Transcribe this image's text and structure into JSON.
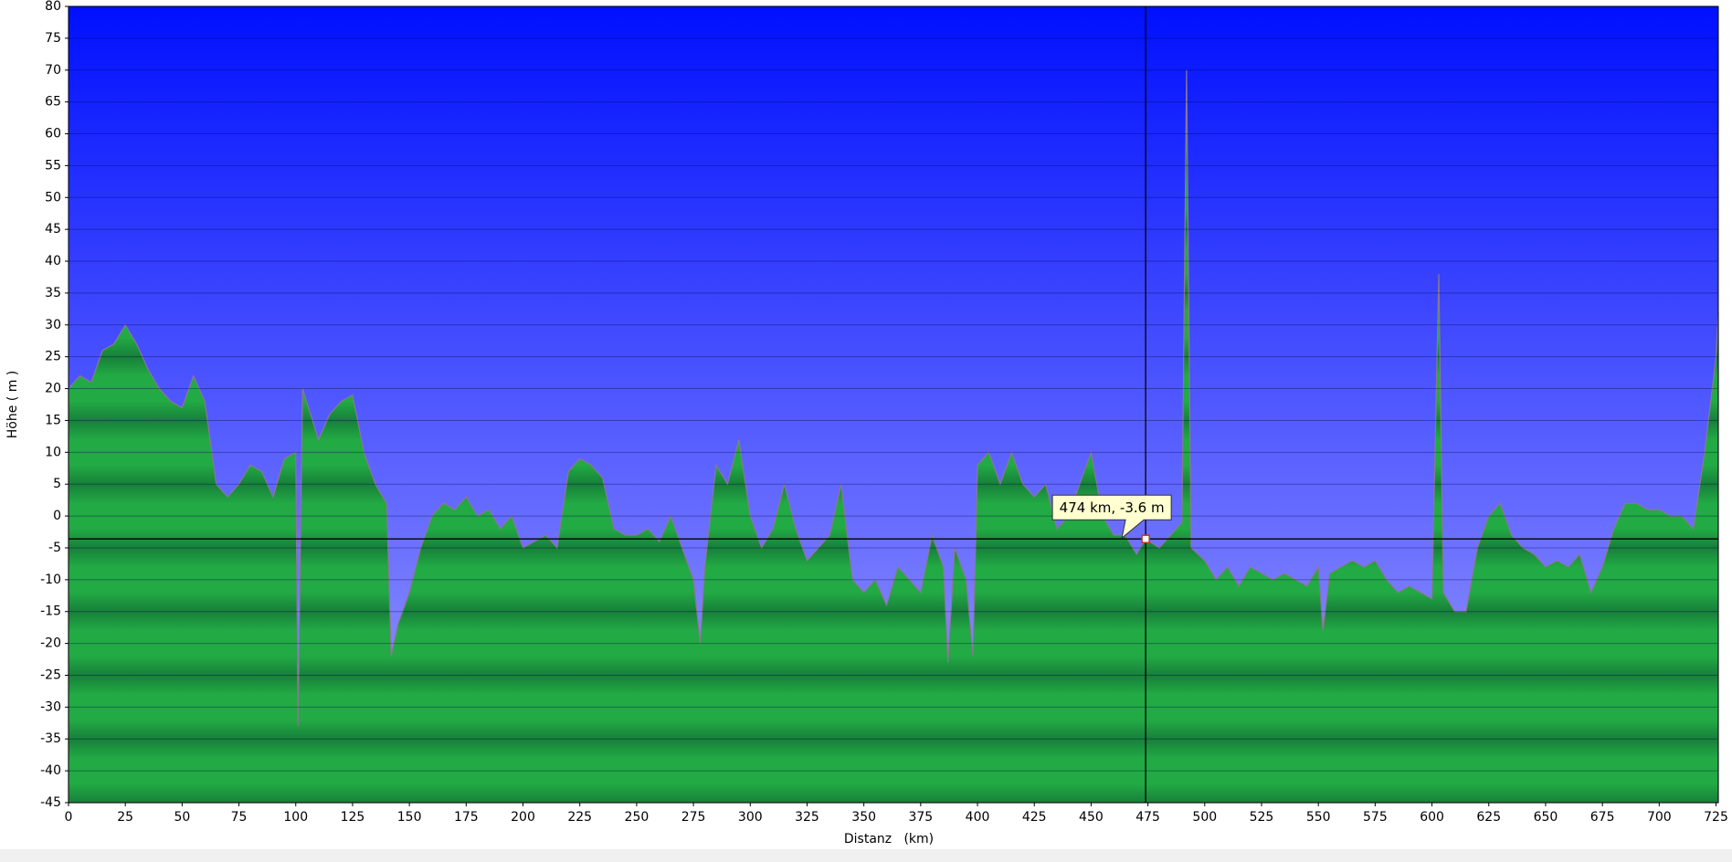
{
  "chart_data": {
    "type": "area",
    "x_label": "Distanz   (km)",
    "y_label": "Höhe ( m )",
    "color": "#22aa44",
    "grid": true,
    "xlim": [
      0,
      726
    ],
    "ylim": [
      -45,
      80
    ],
    "xticks": [
      0,
      25,
      50,
      75,
      100,
      125,
      150,
      175,
      200,
      225,
      250,
      275,
      300,
      325,
      350,
      375,
      400,
      425,
      450,
      475,
      500,
      525,
      550,
      575,
      600,
      625,
      650,
      675,
      700,
      725
    ],
    "yticks": [
      -45,
      -40,
      -35,
      -30,
      -25,
      -20,
      -15,
      -10,
      -5,
      0,
      5,
      10,
      15,
      20,
      25,
      30,
      35,
      40,
      45,
      50,
      55,
      60,
      65,
      70,
      75,
      80
    ],
    "x": [
      0,
      5,
      10,
      15,
      20,
      25,
      30,
      35,
      40,
      45,
      50,
      55,
      60,
      65,
      70,
      75,
      80,
      85,
      90,
      95,
      100,
      101,
      103,
      110,
      115,
      120,
      125,
      130,
      135,
      140,
      142,
      145,
      150,
      155,
      160,
      165,
      170,
      175,
      180,
      185,
      190,
      195,
      200,
      205,
      210,
      215,
      220,
      225,
      230,
      235,
      240,
      245,
      250,
      255,
      260,
      265,
      270,
      275,
      278,
      280,
      285,
      290,
      295,
      300,
      305,
      310,
      315,
      320,
      325,
      330,
      335,
      340,
      345,
      350,
      355,
      360,
      365,
      370,
      375,
      380,
      385,
      387,
      390,
      395,
      398,
      400,
      405,
      410,
      415,
      420,
      425,
      430,
      435,
      440,
      445,
      450,
      455,
      460,
      465,
      470,
      474,
      480,
      485,
      490,
      492,
      494,
      500,
      505,
      510,
      515,
      520,
      525,
      530,
      535,
      540,
      545,
      550,
      552,
      555,
      560,
      565,
      570,
      575,
      580,
      585,
      590,
      595,
      600,
      603,
      605,
      610,
      615,
      620,
      625,
      630,
      635,
      640,
      645,
      650,
      655,
      660,
      665,
      670,
      675,
      680,
      685,
      690,
      695,
      700,
      705,
      710,
      715,
      720,
      725,
      726
    ],
    "values": [
      20,
      22,
      21,
      26,
      27,
      30,
      27,
      23,
      20,
      18,
      17,
      22,
      18,
      5,
      3,
      5,
      8,
      7,
      3,
      9,
      10,
      -33,
      20,
      12,
      16,
      18,
      19,
      10,
      5,
      2,
      -22,
      -17,
      -12,
      -5,
      0,
      2,
      1,
      3,
      0,
      1,
      -2,
      0,
      -5,
      -4,
      -3,
      -5,
      7,
      9,
      8,
      6,
      -2,
      -3,
      -3,
      -2,
      -4,
      0,
      -5,
      -10,
      -20,
      -8,
      8,
      5,
      12,
      0,
      -5,
      -2,
      5,
      -2,
      -7,
      -5,
      -3,
      5,
      -10,
      -12,
      -10,
      -14,
      -8,
      -10,
      -12,
      -3,
      -8,
      -23,
      -5,
      -10,
      -22,
      8,
      10,
      5,
      10,
      5,
      3,
      5,
      -2,
      0,
      5,
      10,
      0,
      -3,
      -3,
      -6,
      -3.6,
      -5,
      -3,
      -1,
      70,
      -5,
      -7,
      -10,
      -8,
      -11,
      -8,
      -9,
      -10,
      -9,
      -10,
      -11,
      -8,
      -18,
      -9,
      -8,
      -7,
      -8,
      -7,
      -10,
      -12,
      -11,
      -12,
      -13,
      38,
      -12,
      -15,
      -15,
      -5,
      0,
      2,
      -3,
      -5,
      -6,
      -8,
      -7,
      -8,
      -6,
      -12,
      -8,
      -2,
      2,
      2,
      1,
      1,
      0,
      0,
      -2,
      10,
      25,
      32
    ],
    "annotation": {
      "text": "474 km, -3.6 m",
      "x": 474,
      "y": -3.6
    }
  }
}
